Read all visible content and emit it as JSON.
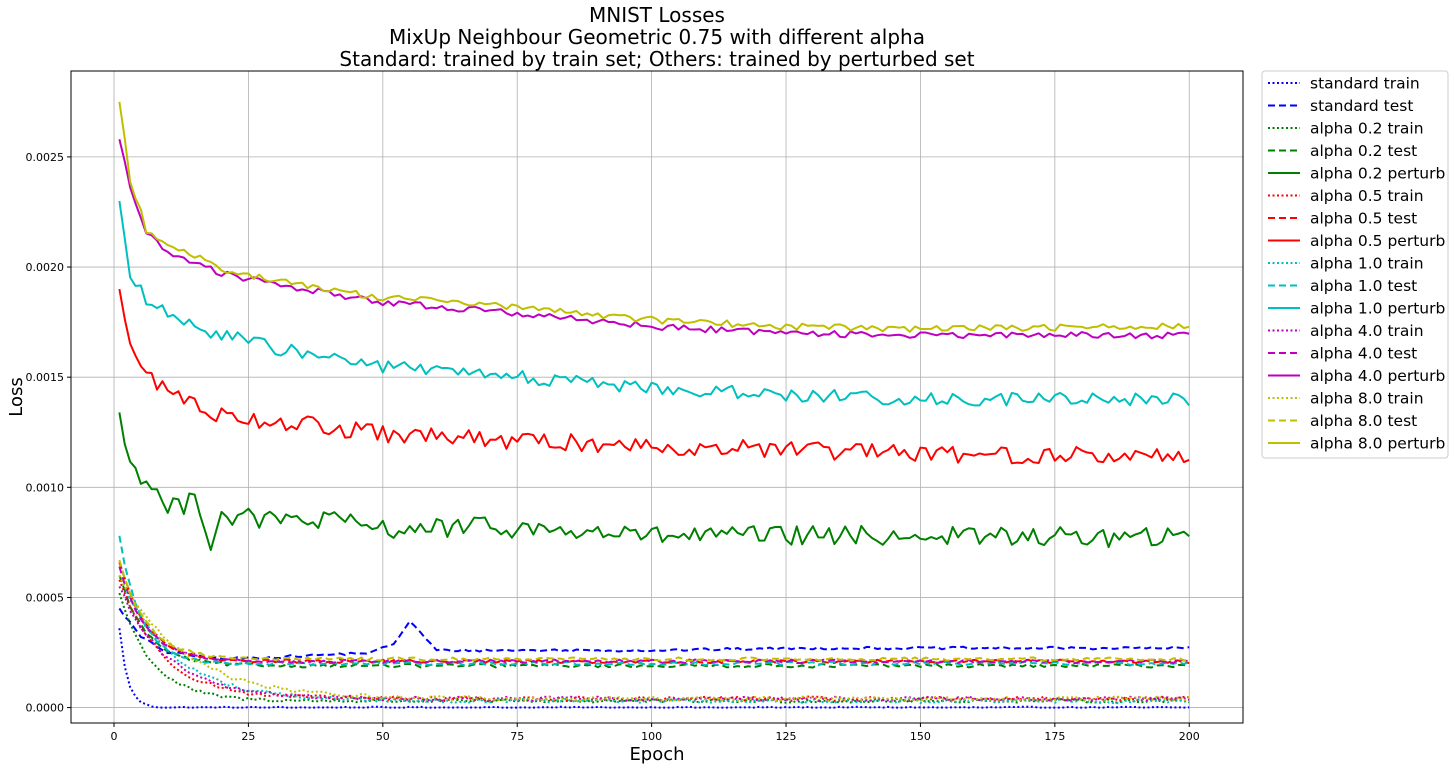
{
  "chart_data": {
    "type": "line",
    "title": [
      "MNIST Losses",
      "MixUp Neighbour Geometric 0.75 with different alpha",
      "Standard: trained by train set; Others: trained by perturbed set"
    ],
    "xlabel": "Epoch",
    "ylabel": "Loss",
    "xlim": [
      -8,
      210
    ],
    "ylim": [
      -7e-05,
      0.00289
    ],
    "xticks": [
      0,
      25,
      50,
      75,
      100,
      125,
      150,
      175,
      200
    ],
    "xtick_labels": [
      "0",
      "25",
      "50",
      "75",
      "100",
      "125",
      "150",
      "175",
      "200"
    ],
    "yticks": [
      0.0,
      0.0005,
      0.001,
      0.0015,
      0.002,
      0.0025
    ],
    "ytick_labels": [
      "0.0000",
      "0.0005",
      "0.0010",
      "0.0015",
      "0.0020",
      "0.0025"
    ],
    "grid": true,
    "legend_position": "outside-top-right",
    "epochs": [
      1,
      200
    ],
    "series": [
      {
        "name": "standard train",
        "color": "#0000ff",
        "style": "dotted",
        "start": 0.00036,
        "tau": 1.5,
        "end": 0.0,
        "noise": 4e-06
      },
      {
        "name": "standard test",
        "color": "#0000ff",
        "style": "dashed",
        "start": 0.00045,
        "tau": 4,
        "end": 0.00026,
        "noise": 6e-06,
        "keypoints": [
          [
            1,
            0.00045
          ],
          [
            5,
            0.00032
          ],
          [
            10,
            0.00025
          ],
          [
            20,
            0.00022
          ],
          [
            30,
            0.00023
          ],
          [
            40,
            0.00024
          ],
          [
            48,
            0.00025
          ],
          [
            52,
            0.00029
          ],
          [
            55,
            0.00039
          ],
          [
            57,
            0.00034
          ],
          [
            60,
            0.00026
          ],
          [
            80,
            0.00026
          ],
          [
            100,
            0.00026
          ],
          [
            130,
            0.00027
          ],
          [
            160,
            0.00027
          ],
          [
            200,
            0.00027
          ]
        ]
      },
      {
        "name": "alpha 0.2 train",
        "color": "#008000",
        "style": "dotted",
        "start": 0.00052,
        "tau": 6,
        "end": 3e-05,
        "noise": 8e-06
      },
      {
        "name": "alpha 0.2 test",
        "color": "#008000",
        "style": "dashed",
        "start": 0.0006,
        "tau": 5,
        "end": 0.00019,
        "noise": 8e-06
      },
      {
        "name": "alpha 0.2 perturb",
        "color": "#008000",
        "style": "solid",
        "keypoints": [
          [
            1,
            0.00134
          ],
          [
            3,
            0.0011
          ],
          [
            6,
            0.00104
          ],
          [
            10,
            0.0009
          ],
          [
            13,
            0.00092
          ],
          [
            15,
            0.001
          ],
          [
            18,
            0.00074
          ],
          [
            20,
            0.00087
          ],
          [
            30,
            0.00085
          ],
          [
            40,
            0.00085
          ],
          [
            50,
            0.00081
          ],
          [
            70,
            0.00082
          ],
          [
            100,
            0.00078
          ],
          [
            150,
            0.00078
          ],
          [
            200,
            0.00077
          ]
        ],
        "noise": 4.5e-05
      },
      {
        "name": "alpha 0.5 train",
        "color": "#ff0000",
        "style": "dotted",
        "start": 0.00058,
        "tau": 8,
        "end": 4e-05,
        "noise": 1e-05
      },
      {
        "name": "alpha 0.5 test",
        "color": "#ff0000",
        "style": "dashed",
        "start": 0.00066,
        "tau": 5,
        "end": 0.00021,
        "noise": 8e-06
      },
      {
        "name": "alpha 0.5 perturb",
        "color": "#ff0000",
        "style": "solid",
        "keypoints": [
          [
            1,
            0.0019
          ],
          [
            3,
            0.00165
          ],
          [
            6,
            0.0015
          ],
          [
            10,
            0.00145
          ],
          [
            15,
            0.00137
          ],
          [
            20,
            0.00133
          ],
          [
            30,
            0.0013
          ],
          [
            50,
            0.00124
          ],
          [
            75,
            0.00121
          ],
          [
            100,
            0.00119
          ],
          [
            150,
            0.00115
          ],
          [
            200,
            0.00114
          ]
        ],
        "noise": 4e-05
      },
      {
        "name": "alpha 1.0 train",
        "color": "#00bfbf",
        "style": "dotted",
        "start": 0.0006,
        "tau": 10,
        "end": 3e-05,
        "noise": 1e-05
      },
      {
        "name": "alpha 1.0 test",
        "color": "#00bfbf",
        "style": "dashed",
        "start": 0.00078,
        "tau": 4,
        "end": 0.0002,
        "noise": 8e-06
      },
      {
        "name": "alpha 1.0 perturb",
        "color": "#00bfbf",
        "style": "solid",
        "keypoints": [
          [
            1,
            0.0023
          ],
          [
            3,
            0.00196
          ],
          [
            6,
            0.00185
          ],
          [
            10,
            0.00178
          ],
          [
            15,
            0.00172
          ],
          [
            20,
            0.0017
          ],
          [
            30,
            0.00163
          ],
          [
            50,
            0.00155
          ],
          [
            75,
            0.0015
          ],
          [
            100,
            0.00145
          ],
          [
            125,
            0.00142
          ],
          [
            150,
            0.0014
          ],
          [
            200,
            0.0014
          ]
        ],
        "noise": 3e-05
      },
      {
        "name": "alpha 4.0 train",
        "color": "#bf00bf",
        "style": "dotted",
        "start": 0.00055,
        "tau": 9,
        "end": 4e-05,
        "noise": 1e-05
      },
      {
        "name": "alpha 4.0 test",
        "color": "#bf00bf",
        "style": "dashed",
        "start": 0.00064,
        "tau": 5,
        "end": 0.00021,
        "noise": 8e-06
      },
      {
        "name": "alpha 4.0 perturb",
        "color": "#bf00bf",
        "style": "solid",
        "keypoints": [
          [
            1,
            0.00258
          ],
          [
            3,
            0.00237
          ],
          [
            6,
            0.00215
          ],
          [
            10,
            0.00207
          ],
          [
            15,
            0.00202
          ],
          [
            20,
            0.00197
          ],
          [
            30,
            0.00192
          ],
          [
            50,
            0.00184
          ],
          [
            75,
            0.00179
          ],
          [
            100,
            0.00173
          ],
          [
            125,
            0.0017
          ],
          [
            150,
            0.00169
          ],
          [
            200,
            0.00169
          ]
        ],
        "noise": 1.5e-05
      },
      {
        "name": "alpha 8.0 train",
        "color": "#bfbf00",
        "style": "dotted",
        "start": 0.0006,
        "tau": 12,
        "end": 4e-05,
        "noise": 1e-05
      },
      {
        "name": "alpha 8.0 test",
        "color": "#bfbf00",
        "style": "dashed",
        "start": 0.00067,
        "tau": 5,
        "end": 0.00022,
        "noise": 8e-06
      },
      {
        "name": "alpha 8.0 perturb",
        "color": "#bfbf00",
        "style": "solid",
        "keypoints": [
          [
            1,
            0.00275
          ],
          [
            3,
            0.0024
          ],
          [
            6,
            0.00217
          ],
          [
            10,
            0.0021
          ],
          [
            15,
            0.00205
          ],
          [
            20,
            0.00199
          ],
          [
            30,
            0.00194
          ],
          [
            50,
            0.00186
          ],
          [
            75,
            0.00182
          ],
          [
            100,
            0.00176
          ],
          [
            125,
            0.00173
          ],
          [
            150,
            0.00172
          ],
          [
            200,
            0.00173
          ]
        ],
        "noise": 1.5e-05
      }
    ]
  }
}
